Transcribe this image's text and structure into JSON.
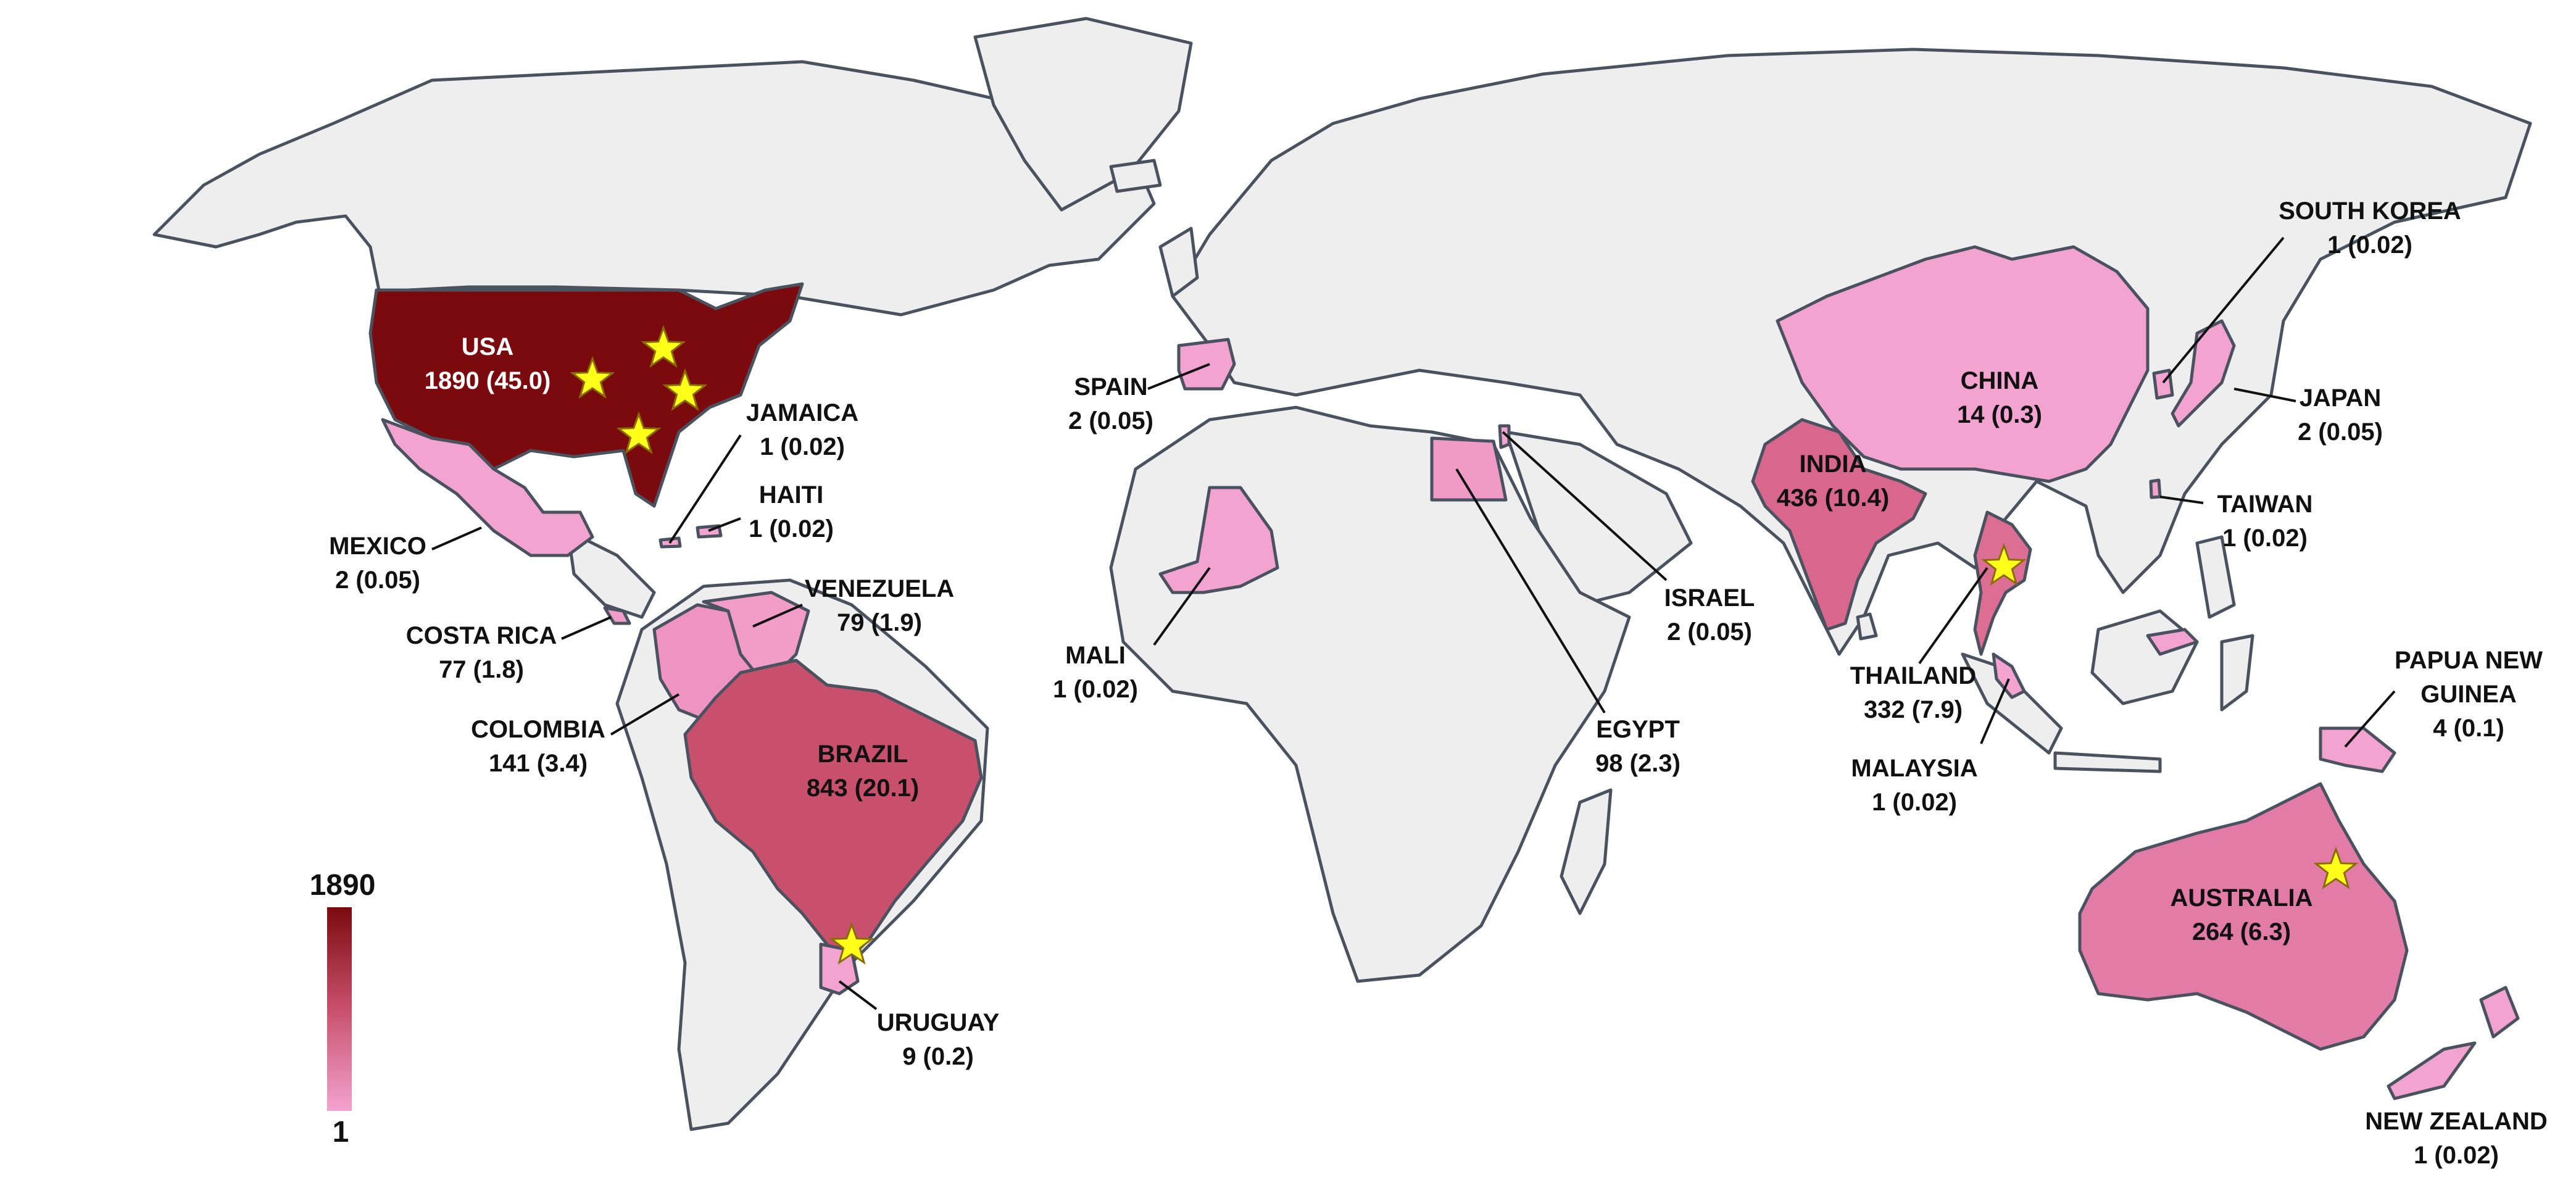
{
  "colors": {
    "land": "#eeeeee",
    "border": "#4a5260",
    "max": "#7b0a0e",
    "min": "#f3a3cf",
    "star": "#ffff1a"
  },
  "legend": {
    "max_label": "1890",
    "min_label": "1"
  },
  "countries": [
    {
      "id": "usa",
      "name": "USA",
      "value_text": "1890 (45.0)",
      "count": 1890,
      "percent": 45.0,
      "fill": "#7b0a0e",
      "stars": 4
    },
    {
      "id": "brazil",
      "name": "BRAZIL",
      "value_text": "843 (20.1)",
      "count": 843,
      "percent": 20.1,
      "fill": "#c8506c",
      "stars": 1
    },
    {
      "id": "india",
      "name": "INDIA",
      "value_text": "436 (10.4)",
      "count": 436,
      "percent": 10.4,
      "fill": "#d9678d",
      "stars": 0
    },
    {
      "id": "thailand",
      "name": "THAILAND",
      "value_text": "332 (7.9)",
      "count": 332,
      "percent": 7.9,
      "fill": "#dc6e93",
      "stars": 1
    },
    {
      "id": "australia",
      "name": "AUSTRALIA",
      "value_text": "264 (6.3)",
      "count": 264,
      "percent": 6.3,
      "fill": "#e27ba6",
      "stars": 1
    },
    {
      "id": "colombia",
      "name": "COLOMBIA",
      "value_text": "141 (3.4)",
      "count": 141,
      "percent": 3.4,
      "fill": "#ee93c2",
      "stars": 0
    },
    {
      "id": "egypt",
      "name": "EGYPT",
      "value_text": "98 (2.3)",
      "count": 98,
      "percent": 2.3,
      "fill": "#f09bc6",
      "stars": 0
    },
    {
      "id": "venezuela",
      "name": "VENEZUELA",
      "value_text": "79 (1.9)",
      "count": 79,
      "percent": 1.9,
      "fill": "#f19dc8",
      "stars": 0
    },
    {
      "id": "costa_rica",
      "name": "COSTA RICA",
      "value_text": "77 (1.8)",
      "count": 77,
      "percent": 1.8,
      "fill": "#f19dc8",
      "stars": 0
    },
    {
      "id": "china",
      "name": "CHINA",
      "value_text": "14 (0.3)",
      "count": 14,
      "percent": 0.3,
      "fill": "#f3a3cf",
      "stars": 0
    },
    {
      "id": "uruguay",
      "name": "URUGUAY",
      "value_text": "9 (0.2)",
      "count": 9,
      "percent": 0.2,
      "fill": "#f3a3cf",
      "stars": 1
    },
    {
      "id": "papua",
      "name": "PAPUA NEW GUINEA",
      "name_line1": "PAPUA NEW",
      "name_line2": "GUINEA",
      "value_text": "4 (0.1)",
      "count": 4,
      "percent": 0.1,
      "fill": "#f3a3cf",
      "stars": 0
    },
    {
      "id": "mexico",
      "name": "MEXICO",
      "value_text": "2 (0.05)",
      "count": 2,
      "percent": 0.05,
      "fill": "#f3a3cf",
      "stars": 0
    },
    {
      "id": "spain",
      "name": "SPAIN",
      "value_text": "2 (0.05)",
      "count": 2,
      "percent": 0.05,
      "fill": "#f3a3cf",
      "stars": 0
    },
    {
      "id": "israel",
      "name": "ISRAEL",
      "value_text": "2 (0.05)",
      "count": 2,
      "percent": 0.05,
      "fill": "#f3a3cf",
      "stars": 0
    },
    {
      "id": "japan",
      "name": "JAPAN",
      "value_text": "2 (0.05)",
      "count": 2,
      "percent": 0.05,
      "fill": "#f3a3cf",
      "stars": 0
    },
    {
      "id": "jamaica",
      "name": "JAMAICA",
      "value_text": "1 (0.02)",
      "count": 1,
      "percent": 0.02,
      "fill": "#f3a3cf",
      "stars": 0
    },
    {
      "id": "haiti",
      "name": "HAITI",
      "value_text": "1 (0.02)",
      "count": 1,
      "percent": 0.02,
      "fill": "#f3a3cf",
      "stars": 0
    },
    {
      "id": "mali",
      "name": "MALI",
      "value_text": "1 (0.02)",
      "count": 1,
      "percent": 0.02,
      "fill": "#f3a3cf",
      "stars": 0
    },
    {
      "id": "malaysia",
      "name": "MALAYSIA",
      "value_text": "1 (0.02)",
      "count": 1,
      "percent": 0.02,
      "fill": "#f3a3cf",
      "stars": 0
    },
    {
      "id": "south_korea",
      "name": "SOUTH KOREA",
      "value_text": "1 (0.02)",
      "count": 1,
      "percent": 0.02,
      "fill": "#f3a3cf",
      "stars": 0
    },
    {
      "id": "taiwan",
      "name": "TAIWAN",
      "value_text": "1 (0.02)",
      "count": 1,
      "percent": 0.02,
      "fill": "#f3a3cf",
      "stars": 0
    },
    {
      "id": "new_zealand",
      "name": "NEW ZEALAND",
      "value_text": "1 (0.02)",
      "count": 1,
      "percent": 0.02,
      "fill": "#f3a3cf",
      "stars": 0
    }
  ]
}
